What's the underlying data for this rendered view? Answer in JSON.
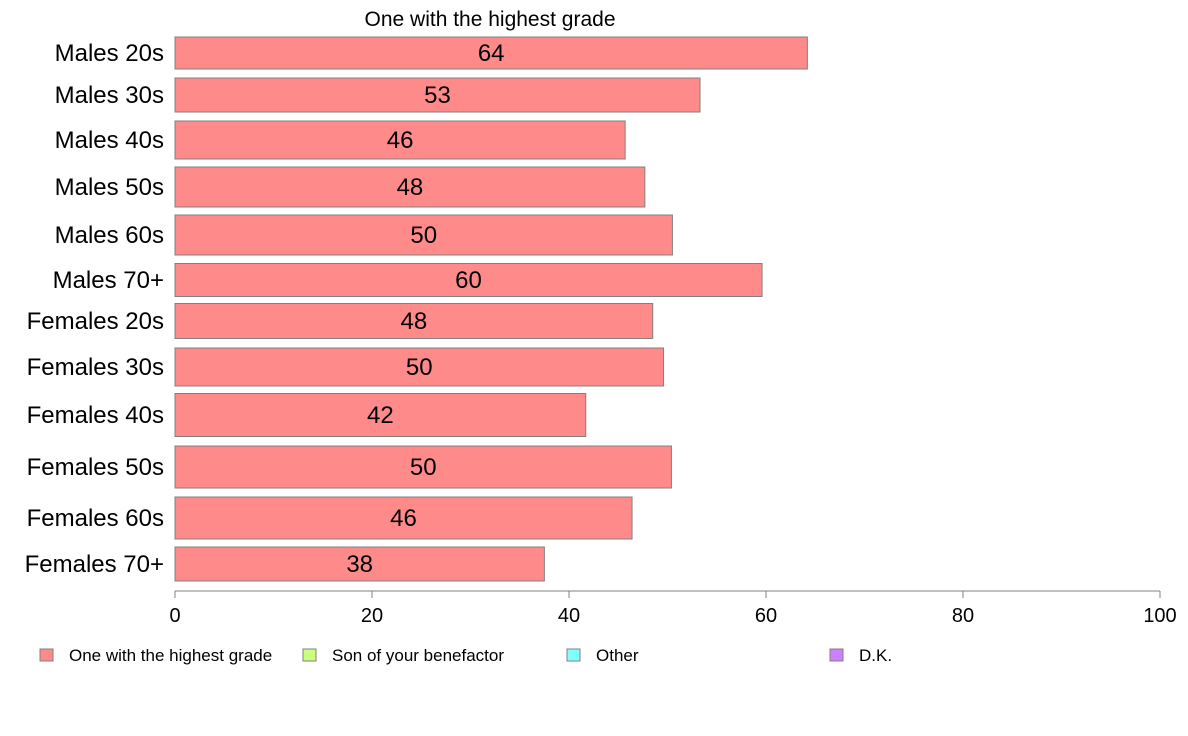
{
  "chart_data": {
    "type": "bar",
    "orientation": "horizontal",
    "title": "One with the highest grade",
    "categories": [
      "Males 20s",
      "Males 30s",
      "Males 40s",
      "Males 50s",
      "Males 60s",
      "Males 70+",
      "Females 20s",
      "Females 30s",
      "Females 40s",
      "Females 50s",
      "Females 60s",
      "Females 70+"
    ],
    "series": [
      {
        "name": "One with the highest grade",
        "color": "#ff8a8a",
        "values": [
          64.2,
          53.3,
          45.7,
          47.7,
          50.5,
          59.6,
          48.5,
          49.6,
          41.7,
          50.4,
          46.4,
          37.5
        ],
        "labels": [
          "64",
          "53",
          "46",
          "48",
          "50",
          "60",
          "48",
          "50",
          "42",
          "50",
          "46",
          "38"
        ]
      }
    ],
    "legend": [
      {
        "name": "One with the highest grade",
        "color": "#ff8a8a"
      },
      {
        "name": "Son of your benefactor",
        "color": "#ccff80"
      },
      {
        "name": "Other",
        "color": "#80ffff"
      },
      {
        "name": "D.K.",
        "color": "#cc80ff"
      }
    ],
    "legend_position": "bottom",
    "xlim": [
      0,
      100
    ],
    "xticks": [
      0,
      20,
      40,
      60,
      80,
      100
    ],
    "grid": false,
    "xlabel": "",
    "ylabel": ""
  }
}
